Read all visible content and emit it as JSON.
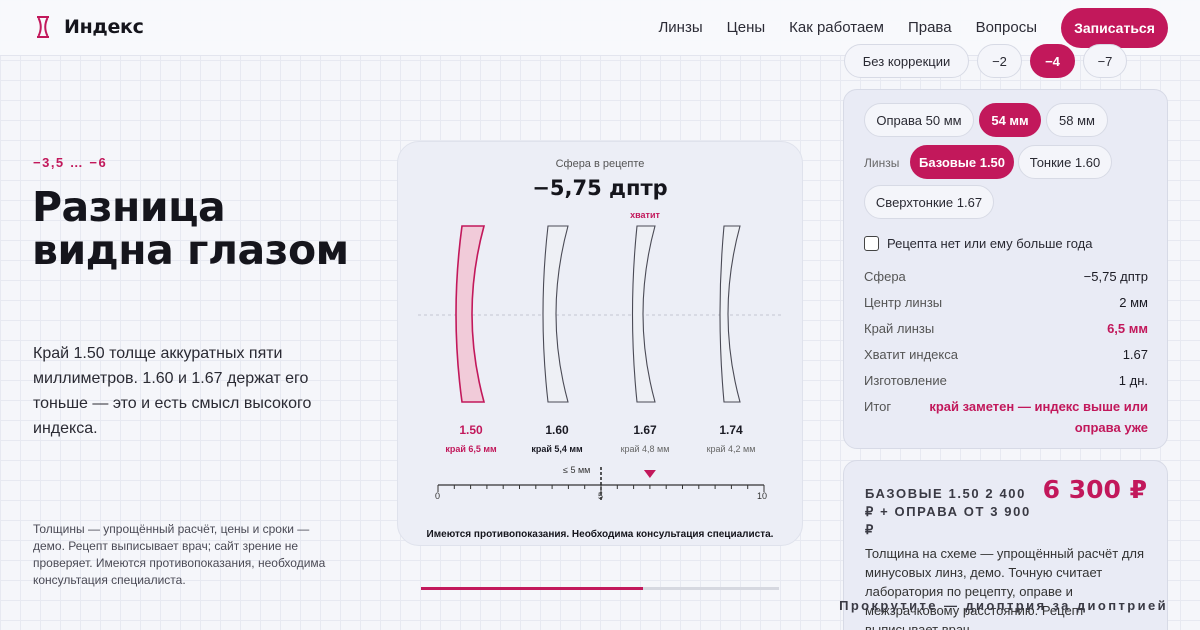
{
  "brand": {
    "name": "Индекс",
    "accent": "#c2185b"
  },
  "nav": {
    "links": [
      "Линзы",
      "Цены",
      "Как работаем",
      "Права",
      "Вопросы"
    ],
    "cta": "Записаться"
  },
  "hero": {
    "range": "−3,5 … −6",
    "title": "Разница видна глазом",
    "text": "Край 1.50 толще аккуратных пяти миллиметров. 1.60 и 1.67 держат его тоньше — это и есть смысл высокого индекса.",
    "fine": "Толщины — упрощённый расчёт, цены и сроки — демо. Рецепт выписывает врач; сайт зрение не проверяет. Имеются противопоказания, необходима консультация специалиста."
  },
  "visual": {
    "sphere_label": "Сфера в рецепте",
    "sphere_value": "−5,75 дптр",
    "enough_label": "хватит",
    "lenses": [
      {
        "index": "1.50",
        "edge": "край 6,5 мм",
        "edge_mm": 6.5,
        "state": "active"
      },
      {
        "index": "1.60",
        "edge": "край 5,4 мм",
        "edge_mm": 5.4,
        "state": "mid"
      },
      {
        "index": "1.67",
        "edge": "край 4,8 мм",
        "edge_mm": 4.8,
        "state": "normal"
      },
      {
        "index": "1.74",
        "edge": "край 4,2 мм",
        "edge_mm": 4.2,
        "state": "normal"
      }
    ],
    "scale": {
      "min": "0",
      "mid": "5",
      "max": "10",
      "threshold_label": "≤ 5 мм",
      "marker_value": 6.5
    },
    "warning": "Имеются противопоказания. Необходима консультация специалиста.",
    "progress": 0.62
  },
  "panel": {
    "corrections": [
      "Без коррекции",
      "−2",
      "−4",
      "−7"
    ],
    "corrections_selected": 2,
    "frames": [
      "Оправа 50 мм",
      "54 мм",
      "58 мм"
    ],
    "frames_selected": 1,
    "lenses_label": "Линзы",
    "lens_types": [
      "Базовые 1.50",
      "Тонкие 1.60",
      "Сверхтонкие 1.67"
    ],
    "lens_selected": 0,
    "checkbox": "Рецепта нет или ему больше года",
    "rows": [
      {
        "k": "Сфера",
        "v": "−5,75 дптр"
      },
      {
        "k": "Центр линзы",
        "v": "2 мм"
      },
      {
        "k": "Край линзы",
        "v": "6,5 мм"
      },
      {
        "k": "Хватит индекса",
        "v": "1.67"
      },
      {
        "k": "Изготовление",
        "v": "1 дн."
      }
    ],
    "total_key": "Итог",
    "total_value": "край заметен — индекс выше или оправа уже"
  },
  "price": {
    "title": "Базовые 1.50 2 400 ₽ + оправа от 3 900 ₽",
    "value": "6 300 ₽",
    "note": "Толщина на схеме — упрощённый расчёт для минусовых линз, демо. Точную считает лаборатория по рецепту, оправе и межзрачковому расстоянию. Рецепт выписывает врач."
  },
  "scroll_hint": "Прокрутите — диоптрия за диоптрией"
}
